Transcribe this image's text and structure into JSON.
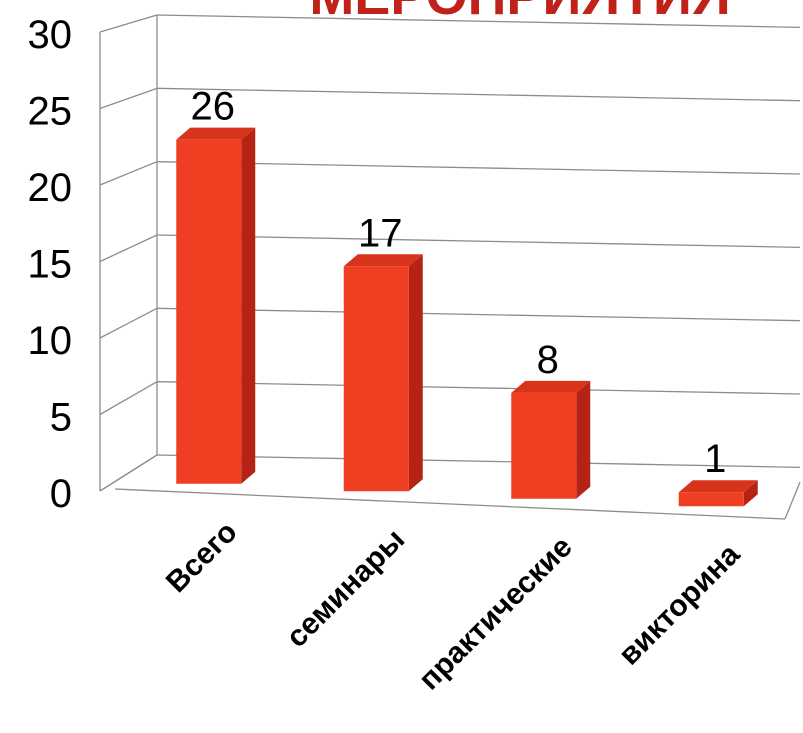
{
  "chart_data": {
    "type": "bar",
    "title": "МЕРОПРИЯТИЯ",
    "categories": [
      "Всего",
      "семинары",
      "практические",
      "викторина"
    ],
    "values": [
      26,
      17,
      8,
      1
    ],
    "data_labels": [
      "26",
      "17",
      "8",
      "1"
    ],
    "ylim": [
      0,
      30
    ],
    "y_ticks": [
      "0",
      "5",
      "10",
      "15",
      "20",
      "25",
      "30"
    ],
    "xlabel": "",
    "ylabel": "",
    "grid": true,
    "legend": "none",
    "style": "3d-column"
  },
  "colors": {
    "bar_front": "#f03e22",
    "bar_side": "#b42314",
    "bar_top": "#d8341c",
    "title": "#c0221a",
    "grid": "#8c8c8c",
    "text": "#000000"
  }
}
